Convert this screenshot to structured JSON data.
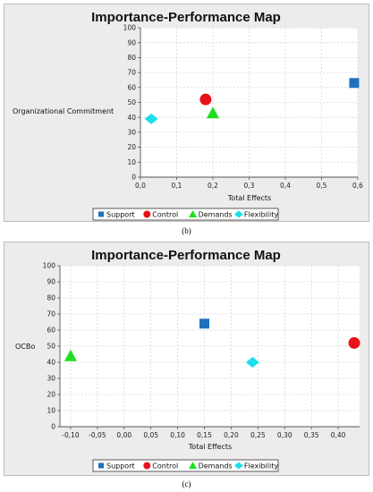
{
  "captions": [
    "(b)",
    "(c)"
  ],
  "chart_data": [
    {
      "type": "scatter",
      "title": "Importance-Performance Map",
      "xlabel": "Total Effects",
      "ylabel": "Organizational Commitment",
      "xlim": [
        0,
        0.6
      ],
      "ylim": [
        0,
        100
      ],
      "x_ticks": [
        "0,0",
        "0,1",
        "0,2",
        "0,3",
        "0,4",
        "0,5",
        "0,6"
      ],
      "x_tick_values": [
        0,
        0.1,
        0.2,
        0.3,
        0.4,
        0.5,
        0.6
      ],
      "y_ticks": [
        "0",
        "10",
        "20",
        "30",
        "40",
        "50",
        "60",
        "70",
        "80",
        "90",
        "100"
      ],
      "y_tick_values": [
        0,
        10,
        20,
        30,
        40,
        50,
        60,
        70,
        80,
        90,
        100
      ],
      "grid": true,
      "legend_position": "bottom",
      "series": [
        {
          "name": "Support",
          "marker": "square",
          "color": "#1f6fbf",
          "x": 0.59,
          "y": 63
        },
        {
          "name": "Control",
          "marker": "circle",
          "color": "#e8131a",
          "x": 0.18,
          "y": 52
        },
        {
          "name": "Demands",
          "marker": "triangle",
          "color": "#1fe01f",
          "x": 0.2,
          "y": 43
        },
        {
          "name": "Flexibility",
          "marker": "diamond",
          "color": "#19e0ea",
          "x": 0.03,
          "y": 39
        }
      ]
    },
    {
      "type": "scatter",
      "title": "Importance-Performance Map",
      "xlabel": "Total Effects",
      "ylabel": "OCBo",
      "xlim": [
        -0.12,
        0.44
      ],
      "ylim": [
        0,
        100
      ],
      "x_ticks": [
        "-0,10",
        "-0,05",
        "0,00",
        "0,05",
        "0,10",
        "0,15",
        "0,20",
        "0,25",
        "0,30",
        "0,35",
        "0,40"
      ],
      "x_tick_values": [
        -0.1,
        -0.05,
        0,
        0.05,
        0.1,
        0.15,
        0.2,
        0.25,
        0.3,
        0.35,
        0.4
      ],
      "y_ticks": [
        "0",
        "10",
        "20",
        "30",
        "40",
        "50",
        "60",
        "70",
        "80",
        "90",
        "100"
      ],
      "y_tick_values": [
        0,
        10,
        20,
        30,
        40,
        50,
        60,
        70,
        80,
        90,
        100
      ],
      "grid": true,
      "legend_position": "bottom",
      "series": [
        {
          "name": "Support",
          "marker": "square",
          "color": "#1f6fbf",
          "x": 0.15,
          "y": 64
        },
        {
          "name": "Control",
          "marker": "circle",
          "color": "#e8131a",
          "x": 0.43,
          "y": 52
        },
        {
          "name": "Demands",
          "marker": "triangle",
          "color": "#1fe01f",
          "x": -0.1,
          "y": 44
        },
        {
          "name": "Flexibility",
          "marker": "diamond",
          "color": "#19e0ea",
          "x": 0.24,
          "y": 40
        }
      ]
    }
  ]
}
